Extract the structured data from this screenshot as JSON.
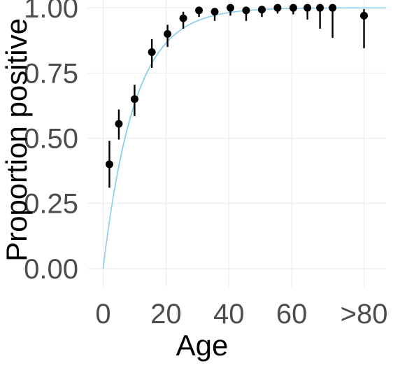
{
  "chart_data": {
    "type": "scatter",
    "xlabel": "Age",
    "ylabel": "Proportion positive",
    "xlim": [
      -5,
      90
    ],
    "ylim": [
      -0.07,
      1.03
    ],
    "x_ticks": [
      {
        "value": 0,
        "label": "0"
      },
      {
        "value": 20,
        "label": "20"
      },
      {
        "value": 40,
        "label": "40"
      },
      {
        "value": 60,
        "label": "60"
      },
      {
        "value": 83,
        "label": ">80"
      }
    ],
    "y_ticks": [
      {
        "value": 0.0,
        "label": "0.00"
      },
      {
        "value": 0.25,
        "label": "0.25"
      },
      {
        "value": 0.5,
        "label": "0.50"
      },
      {
        "value": 0.75,
        "label": "0.75"
      },
      {
        "value": 1.0,
        "label": "1.00"
      }
    ],
    "grid": true,
    "legend": "none",
    "points": [
      {
        "x": 2,
        "y": 0.4,
        "lo": 0.31,
        "hi": 0.49
      },
      {
        "x": 5,
        "y": 0.555,
        "lo": 0.495,
        "hi": 0.61
      },
      {
        "x": 10,
        "y": 0.65,
        "lo": 0.585,
        "hi": 0.705
      },
      {
        "x": 15.5,
        "y": 0.83,
        "lo": 0.77,
        "hi": 0.88
      },
      {
        "x": 20.5,
        "y": 0.9,
        "lo": 0.85,
        "hi": 0.935
      },
      {
        "x": 25.5,
        "y": 0.96,
        "lo": 0.92,
        "hi": 0.985
      },
      {
        "x": 30.5,
        "y": 0.99,
        "lo": 0.965,
        "hi": 1.0
      },
      {
        "x": 35.5,
        "y": 0.985,
        "lo": 0.95,
        "hi": 0.995
      },
      {
        "x": 40.5,
        "y": 1.0,
        "lo": 0.97,
        "hi": 1.0
      },
      {
        "x": 45.5,
        "y": 0.99,
        "lo": 0.95,
        "hi": 0.998
      },
      {
        "x": 50.5,
        "y": 0.993,
        "lo": 0.965,
        "hi": 0.998
      },
      {
        "x": 55.5,
        "y": 1.0,
        "lo": 0.978,
        "hi": 1.0
      },
      {
        "x": 60.5,
        "y": 1.0,
        "lo": 0.975,
        "hi": 1.0
      },
      {
        "x": 65,
        "y": 1.0,
        "lo": 0.955,
        "hi": 1.0
      },
      {
        "x": 69,
        "y": 1.0,
        "lo": 0.92,
        "hi": 1.0
      },
      {
        "x": 73,
        "y": 1.0,
        "lo": 0.885,
        "hi": 1.0
      },
      {
        "x": 83,
        "y": 0.97,
        "lo": 0.845,
        "hi": 0.995
      }
    ],
    "fit_curve": {
      "model": "1 - exp(-k * x)",
      "k": 0.1,
      "x_range": [
        0,
        90
      ]
    },
    "colors": {
      "points": "#000000",
      "fit_line": "#87ceeb",
      "fit_band": "#bfe3f5",
      "grid": "#ebebeb"
    }
  }
}
